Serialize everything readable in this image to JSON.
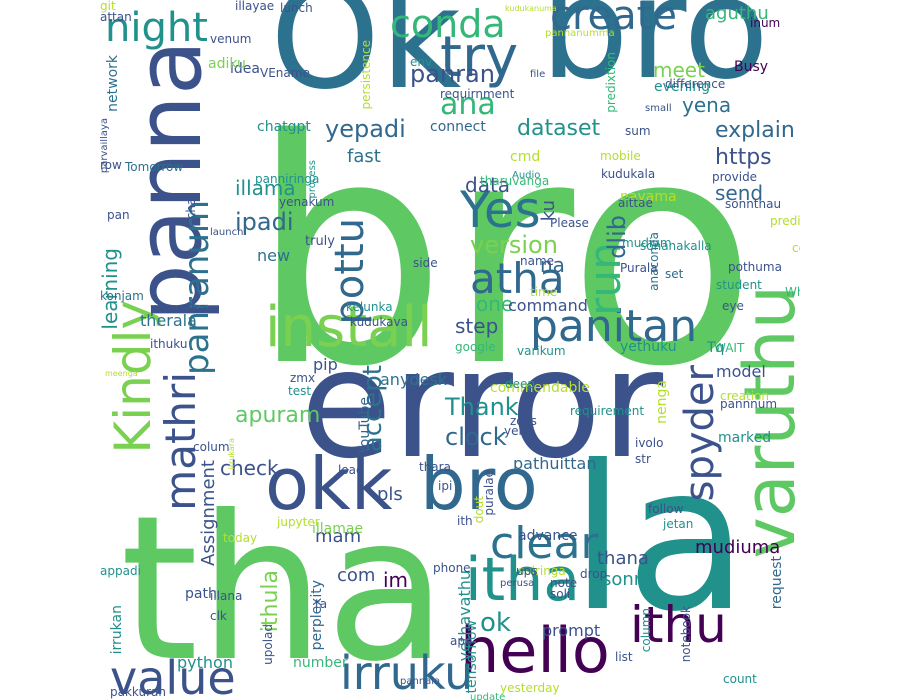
{
  "words": [
    {
      "text": "bro",
      "color": "#5ec962",
      "size": "big"
    },
    {
      "text": "error",
      "color": "#3b528b"
    },
    {
      "text": "tha",
      "color": "#5ec962"
    },
    {
      "text": "la",
      "color": "#21918c"
    },
    {
      "text": "Ok",
      "color": "#2c728e"
    },
    {
      "text": "bro",
      "color": "#2c728e"
    },
    {
      "text": "panna",
      "color": "#3b528b"
    },
    {
      "text": "okk",
      "color": "#3b528b"
    },
    {
      "text": "bro",
      "color": "#31688e"
    },
    {
      "text": "varuthu",
      "color": "#5ec962"
    },
    {
      "text": "hello",
      "color": "#440154"
    },
    {
      "text": "install",
      "color": "#7ad151"
    },
    {
      "text": "itha",
      "color": "#21918c"
    },
    {
      "text": "Kindly",
      "color": "#7ad151"
    },
    {
      "text": "panitan",
      "color": "#31688e"
    },
    {
      "text": "irruku",
      "color": "#31688e"
    },
    {
      "text": "value",
      "color": "#3b528b"
    },
    {
      "text": "ithu",
      "color": "#440154"
    },
    {
      "text": "night",
      "color": "#21918c"
    },
    {
      "text": "conda",
      "color": "#35b779"
    },
    {
      "text": "create",
      "color": "#31688e"
    },
    {
      "text": "try",
      "color": "#31688e"
    },
    {
      "text": "Yes",
      "color": "#2c728e"
    },
    {
      "text": "atha",
      "color": "#31688e"
    },
    {
      "text": "pottu",
      "color": "#31688e"
    },
    {
      "text": "run",
      "color": "#35b779"
    },
    {
      "text": "clear",
      "color": "#2c728e"
    },
    {
      "text": "spyder",
      "color": "#3b528b"
    },
    {
      "text": "mathri",
      "color": "#3b528b"
    },
    {
      "text": "ana",
      "color": "#35b779"
    },
    {
      "text": "panranum",
      "color": "#2c728e"
    },
    {
      "text": "ok",
      "color": "#21918c"
    },
    {
      "text": "Thank",
      "color": "#21918c"
    },
    {
      "text": "clock",
      "color": "#31688e"
    },
    {
      "text": "apuram",
      "color": "#5ec962"
    },
    {
      "text": "check",
      "color": "#3b528b"
    },
    {
      "text": "learning",
      "color": "#21918c"
    },
    {
      "text": "Assignment",
      "color": "#3b528b"
    },
    {
      "text": "dataset",
      "color": "#21918c"
    },
    {
      "text": "explain",
      "color": "#31688e"
    },
    {
      "text": "https",
      "color": "#3b528b"
    },
    {
      "text": "ipadi",
      "color": "#31688e"
    },
    {
      "text": "version",
      "color": "#7ad151"
    },
    {
      "text": "dlib",
      "color": "#31688e"
    },
    {
      "text": "ku",
      "color": "#3b528b"
    },
    {
      "text": "accept",
      "color": "#2c728e"
    },
    {
      "text": "yepadi",
      "color": "#31688e"
    },
    {
      "text": "panran",
      "color": "#3b528b"
    },
    {
      "text": "meet",
      "color": "#7ad151"
    },
    {
      "text": "yena",
      "color": "#2c728e"
    },
    {
      "text": "aguthu",
      "color": "#35b779"
    },
    {
      "text": "data",
      "color": "#3b528b"
    },
    {
      "text": "send",
      "color": "#31688e"
    },
    {
      "text": "fast",
      "color": "#2c728e"
    },
    {
      "text": "illama",
      "color": "#21918c"
    },
    {
      "text": "step",
      "color": "#3b528b"
    },
    {
      "text": "one",
      "color": "#35b779"
    },
    {
      "text": "command",
      "color": "#3b528b"
    },
    {
      "text": "na",
      "color": "#31688e"
    },
    {
      "text": "pls",
      "color": "#3b528b"
    },
    {
      "text": "mam",
      "color": "#3b528b"
    },
    {
      "text": "im",
      "color": "#440154"
    },
    {
      "text": "com",
      "color": "#3b528b"
    },
    {
      "text": "thana",
      "color": "#3b528b"
    },
    {
      "text": "sonna",
      "color": "#21918c"
    },
    {
      "text": "mudiuma",
      "color": "#440154"
    },
    {
      "text": "ithula",
      "color": "#7ad151"
    },
    {
      "text": "yethavathu",
      "color": "#21918c"
    },
    {
      "text": "pathuittan",
      "color": "#31688e"
    },
    {
      "text": "model",
      "color": "#3b528b"
    },
    {
      "text": "network",
      "color": "#2c728e"
    },
    {
      "text": "idea",
      "color": "#3b528b"
    },
    {
      "text": "adiku",
      "color": "#7ad151"
    },
    {
      "text": "chatgpt",
      "color": "#21918c"
    },
    {
      "text": "connect",
      "color": "#31688e"
    },
    {
      "text": "evening",
      "color": "#21918c"
    },
    {
      "text": "predixtion",
      "color": "#35b779"
    },
    {
      "text": "persistence",
      "color": "#b5de2b"
    },
    {
      "text": "therala",
      "color": "#2c728e"
    },
    {
      "text": "parunka",
      "color": "#3b528b"
    },
    {
      "text": "new",
      "color": "#2c728e"
    },
    {
      "text": "truly",
      "color": "#3b528b"
    },
    {
      "text": "pip",
      "color": "#3b528b"
    },
    {
      "text": "YouTube",
      "color": "#31688e"
    },
    {
      "text": "anydesk",
      "color": "#2c728e"
    },
    {
      "text": "python",
      "color": "#21918c"
    },
    {
      "text": "number",
      "color": "#35b779"
    },
    {
      "text": "prompt",
      "color": "#3b528b"
    },
    {
      "text": "path",
      "color": "#3b528b"
    },
    {
      "text": "irrukan",
      "color": "#21918c"
    },
    {
      "text": "perplexity",
      "color": "#31688e"
    },
    {
      "text": "tensorflow",
      "color": "#21918c"
    },
    {
      "text": "request",
      "color": "#31688e"
    },
    {
      "text": "illamae",
      "color": "#7ad151"
    },
    {
      "text": "advance",
      "color": "#3b528b"
    },
    {
      "text": "nayama",
      "color": "#b5de2b"
    },
    {
      "text": "cmd",
      "color": "#b5de2b"
    },
    {
      "text": "env",
      "color": "#21918c"
    },
    {
      "text": "WAIT",
      "color": "#35b779"
    },
    {
      "text": "Tq",
      "color": "#21918c"
    },
    {
      "text": "set",
      "color": "#31688e"
    },
    {
      "text": "yethuku",
      "color": "#21918c"
    },
    {
      "text": "commendable",
      "color": "#b5de2b"
    },
    {
      "text": "marked",
      "color": "#21918c"
    },
    {
      "text": "pannnum",
      "color": "#3b528b"
    },
    {
      "text": "ithuku",
      "color": "#3b528b"
    },
    {
      "text": "WhatsApp",
      "color": "#35b779"
    },
    {
      "text": "sonanakalla",
      "color": "#21918c"
    },
    {
      "text": "Busy",
      "color": "#440154"
    },
    {
      "text": "inum",
      "color": "#440154"
    },
    {
      "text": "VEname",
      "color": "#3b528b"
    },
    {
      "text": "lunch",
      "color": "#3b528b"
    },
    {
      "text": "venum",
      "color": "#3b528b"
    },
    {
      "text": "attan",
      "color": "#3b528b"
    },
    {
      "text": "illayae",
      "color": "#3b528b"
    },
    {
      "text": "row",
      "color": "#3b528b"
    },
    {
      "text": "Tomorrow",
      "color": "#2c728e"
    },
    {
      "text": "pan",
      "color": "#3b528b"
    },
    {
      "text": "launch",
      "color": "#3b528b"
    },
    {
      "text": "konjam",
      "color": "#2c728e"
    },
    {
      "text": "chat",
      "color": "#3b528b"
    },
    {
      "text": "parvaillaya",
      "color": "#3b528b"
    },
    {
      "text": "panniringa",
      "color": "#21918c"
    },
    {
      "text": "yenakum",
      "color": "#3b528b"
    },
    {
      "text": "process",
      "color": "#21918c"
    },
    {
      "text": "tharuvanga",
      "color": "#35b779"
    },
    {
      "text": "Audio",
      "color": "#21918c"
    },
    {
      "text": "kudukala",
      "color": "#3b528b"
    },
    {
      "text": "provide",
      "color": "#3b528b"
    },
    {
      "text": "sonnthau",
      "color": "#3b528b"
    },
    {
      "text": "prediction",
      "color": "#b5de2b"
    },
    {
      "text": "pothuma",
      "color": "#3b528b"
    },
    {
      "text": "student",
      "color": "#21918c"
    },
    {
      "text": "code",
      "color": "#b5de2b"
    },
    {
      "text": "classification",
      "color": "#21918c"
    },
    {
      "text": "Please",
      "color": "#3b528b"
    },
    {
      "text": "mudium",
      "color": "#21918c"
    },
    {
      "text": "anaconda",
      "color": "#2c728e"
    },
    {
      "text": "Purala",
      "color": "#3b528b"
    },
    {
      "text": "aittae",
      "color": "#3b528b"
    },
    {
      "text": "name",
      "color": "#3b528b"
    },
    {
      "text": "time",
      "color": "#b5de2b"
    },
    {
      "text": "eye",
      "color": "#3b528b"
    },
    {
      "text": "kelunka",
      "color": "#21918c"
    },
    {
      "text": "kudukava",
      "color": "#3b528b"
    },
    {
      "text": "google",
      "color": "#35b779"
    },
    {
      "text": "varikum",
      "color": "#21918c"
    },
    {
      "text": "zmx",
      "color": "#3b528b"
    },
    {
      "text": "test",
      "color": "#21918c"
    },
    {
      "text": "colum",
      "color": "#3b528b"
    },
    {
      "text": "load",
      "color": "#3b528b"
    },
    {
      "text": "requirement",
      "color": "#21918c"
    },
    {
      "text": "yen",
      "color": "#3b528b"
    },
    {
      "text": "zoks",
      "color": "#3b528b"
    },
    {
      "text": "deep",
      "color": "#21918c"
    },
    {
      "text": "nenga",
      "color": "#b5de2b"
    },
    {
      "text": "creation",
      "color": "#b5de2b"
    },
    {
      "text": "ivolo",
      "color": "#3b528b"
    },
    {
      "text": "str",
      "color": "#3b528b"
    },
    {
      "text": "thara",
      "color": "#3b528b"
    },
    {
      "text": "ipi",
      "color": "#3b528b"
    },
    {
      "text": "puralae",
      "color": "#3b528b"
    },
    {
      "text": "follow",
      "color": "#3b528b"
    },
    {
      "text": "jetan",
      "color": "#21918c"
    },
    {
      "text": "dout",
      "color": "#b5de2b"
    },
    {
      "text": "ith",
      "color": "#3b528b"
    },
    {
      "text": "jupyter",
      "color": "#b5de2b"
    },
    {
      "text": "today",
      "color": "#b5de2b"
    },
    {
      "text": "illana",
      "color": "#3b528b"
    },
    {
      "text": "ta",
      "color": "#3b528b"
    },
    {
      "text": "appadi",
      "color": "#21918c"
    },
    {
      "text": "phone",
      "color": "#3b528b"
    },
    {
      "text": "perusa",
      "color": "#3b528b"
    },
    {
      "text": "note",
      "color": "#3b528b"
    },
    {
      "text": "soli",
      "color": "#3b528b"
    },
    {
      "text": "solringa",
      "color": "#b5de2b"
    },
    {
      "text": "ups",
      "color": "#3b528b"
    },
    {
      "text": "drop",
      "color": "#3b528b"
    },
    {
      "text": "clk",
      "color": "#3b528b"
    },
    {
      "text": "upolad",
      "color": "#3b528b"
    },
    {
      "text": "apo",
      "color": "#3b528b"
    },
    {
      "text": "column",
      "color": "#21918c"
    },
    {
      "text": "notebook",
      "color": "#3b528b"
    },
    {
      "text": "list",
      "color": "#3b528b"
    },
    {
      "text": "count",
      "color": "#21918c"
    },
    {
      "text": "yesterday",
      "color": "#b5de2b"
    },
    {
      "text": "update",
      "color": "#35b779"
    },
    {
      "text": "pannala",
      "color": "#3b528b"
    },
    {
      "text": "pakkuran",
      "color": "#3b528b"
    },
    {
      "text": "meenga",
      "color": "#b5de2b"
    },
    {
      "text": "irrukara",
      "color": "#b5de2b"
    },
    {
      "text": "kudukanuma",
      "color": "#b5de2b"
    },
    {
      "text": "pannanumma",
      "color": "#b5de2b"
    },
    {
      "text": "requirnment",
      "color": "#3b528b"
    },
    {
      "text": "file",
      "color": "#3b528b"
    },
    {
      "text": "difference",
      "color": "#3b528b"
    },
    {
      "text": "small",
      "color": "#3b528b"
    },
    {
      "text": "sum",
      "color": "#3b528b"
    },
    {
      "text": "mobile",
      "color": "#b5de2b"
    },
    {
      "text": "side",
      "color": "#3b528b"
    },
    {
      "text": "git",
      "color": "#b5de2b"
    }
  ]
}
